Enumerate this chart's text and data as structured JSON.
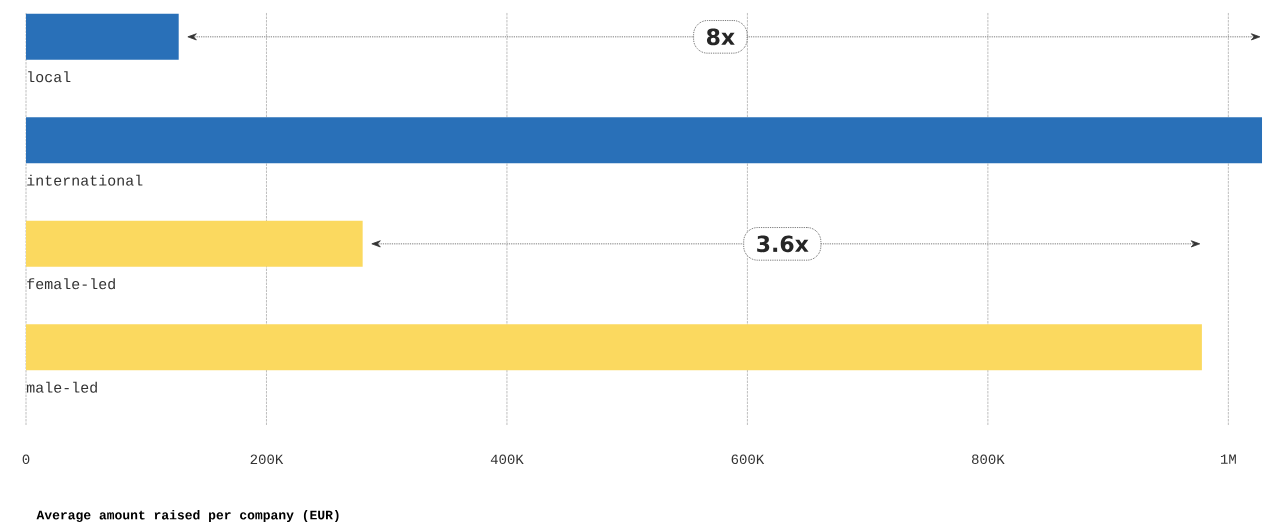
{
  "chart_data": {
    "type": "bar",
    "orientation": "horizontal",
    "categories": [
      "local",
      "international",
      "female-led",
      "male-led"
    ],
    "values": [
      127000,
      1028000,
      280000,
      978000
    ],
    "colors": [
      "#2970b8",
      "#2970b8",
      "#fbd95f",
      "#fbd95f"
    ],
    "xlabel": "Average amount raised per company (EUR)",
    "xlim": [
      0,
      1028000
    ],
    "xticks": [
      0,
      {
        "value": 200000,
        "label": "200K"
      },
      {
        "value": 400000,
        "label": "400K"
      },
      {
        "value": 600000,
        "label": "600K"
      },
      {
        "value": 800000,
        "label": "800K"
      },
      {
        "value": 1000000,
        "label": "1M"
      }
    ],
    "grid": "x",
    "annotations": [
      "8x",
      "3.6x"
    ]
  }
}
